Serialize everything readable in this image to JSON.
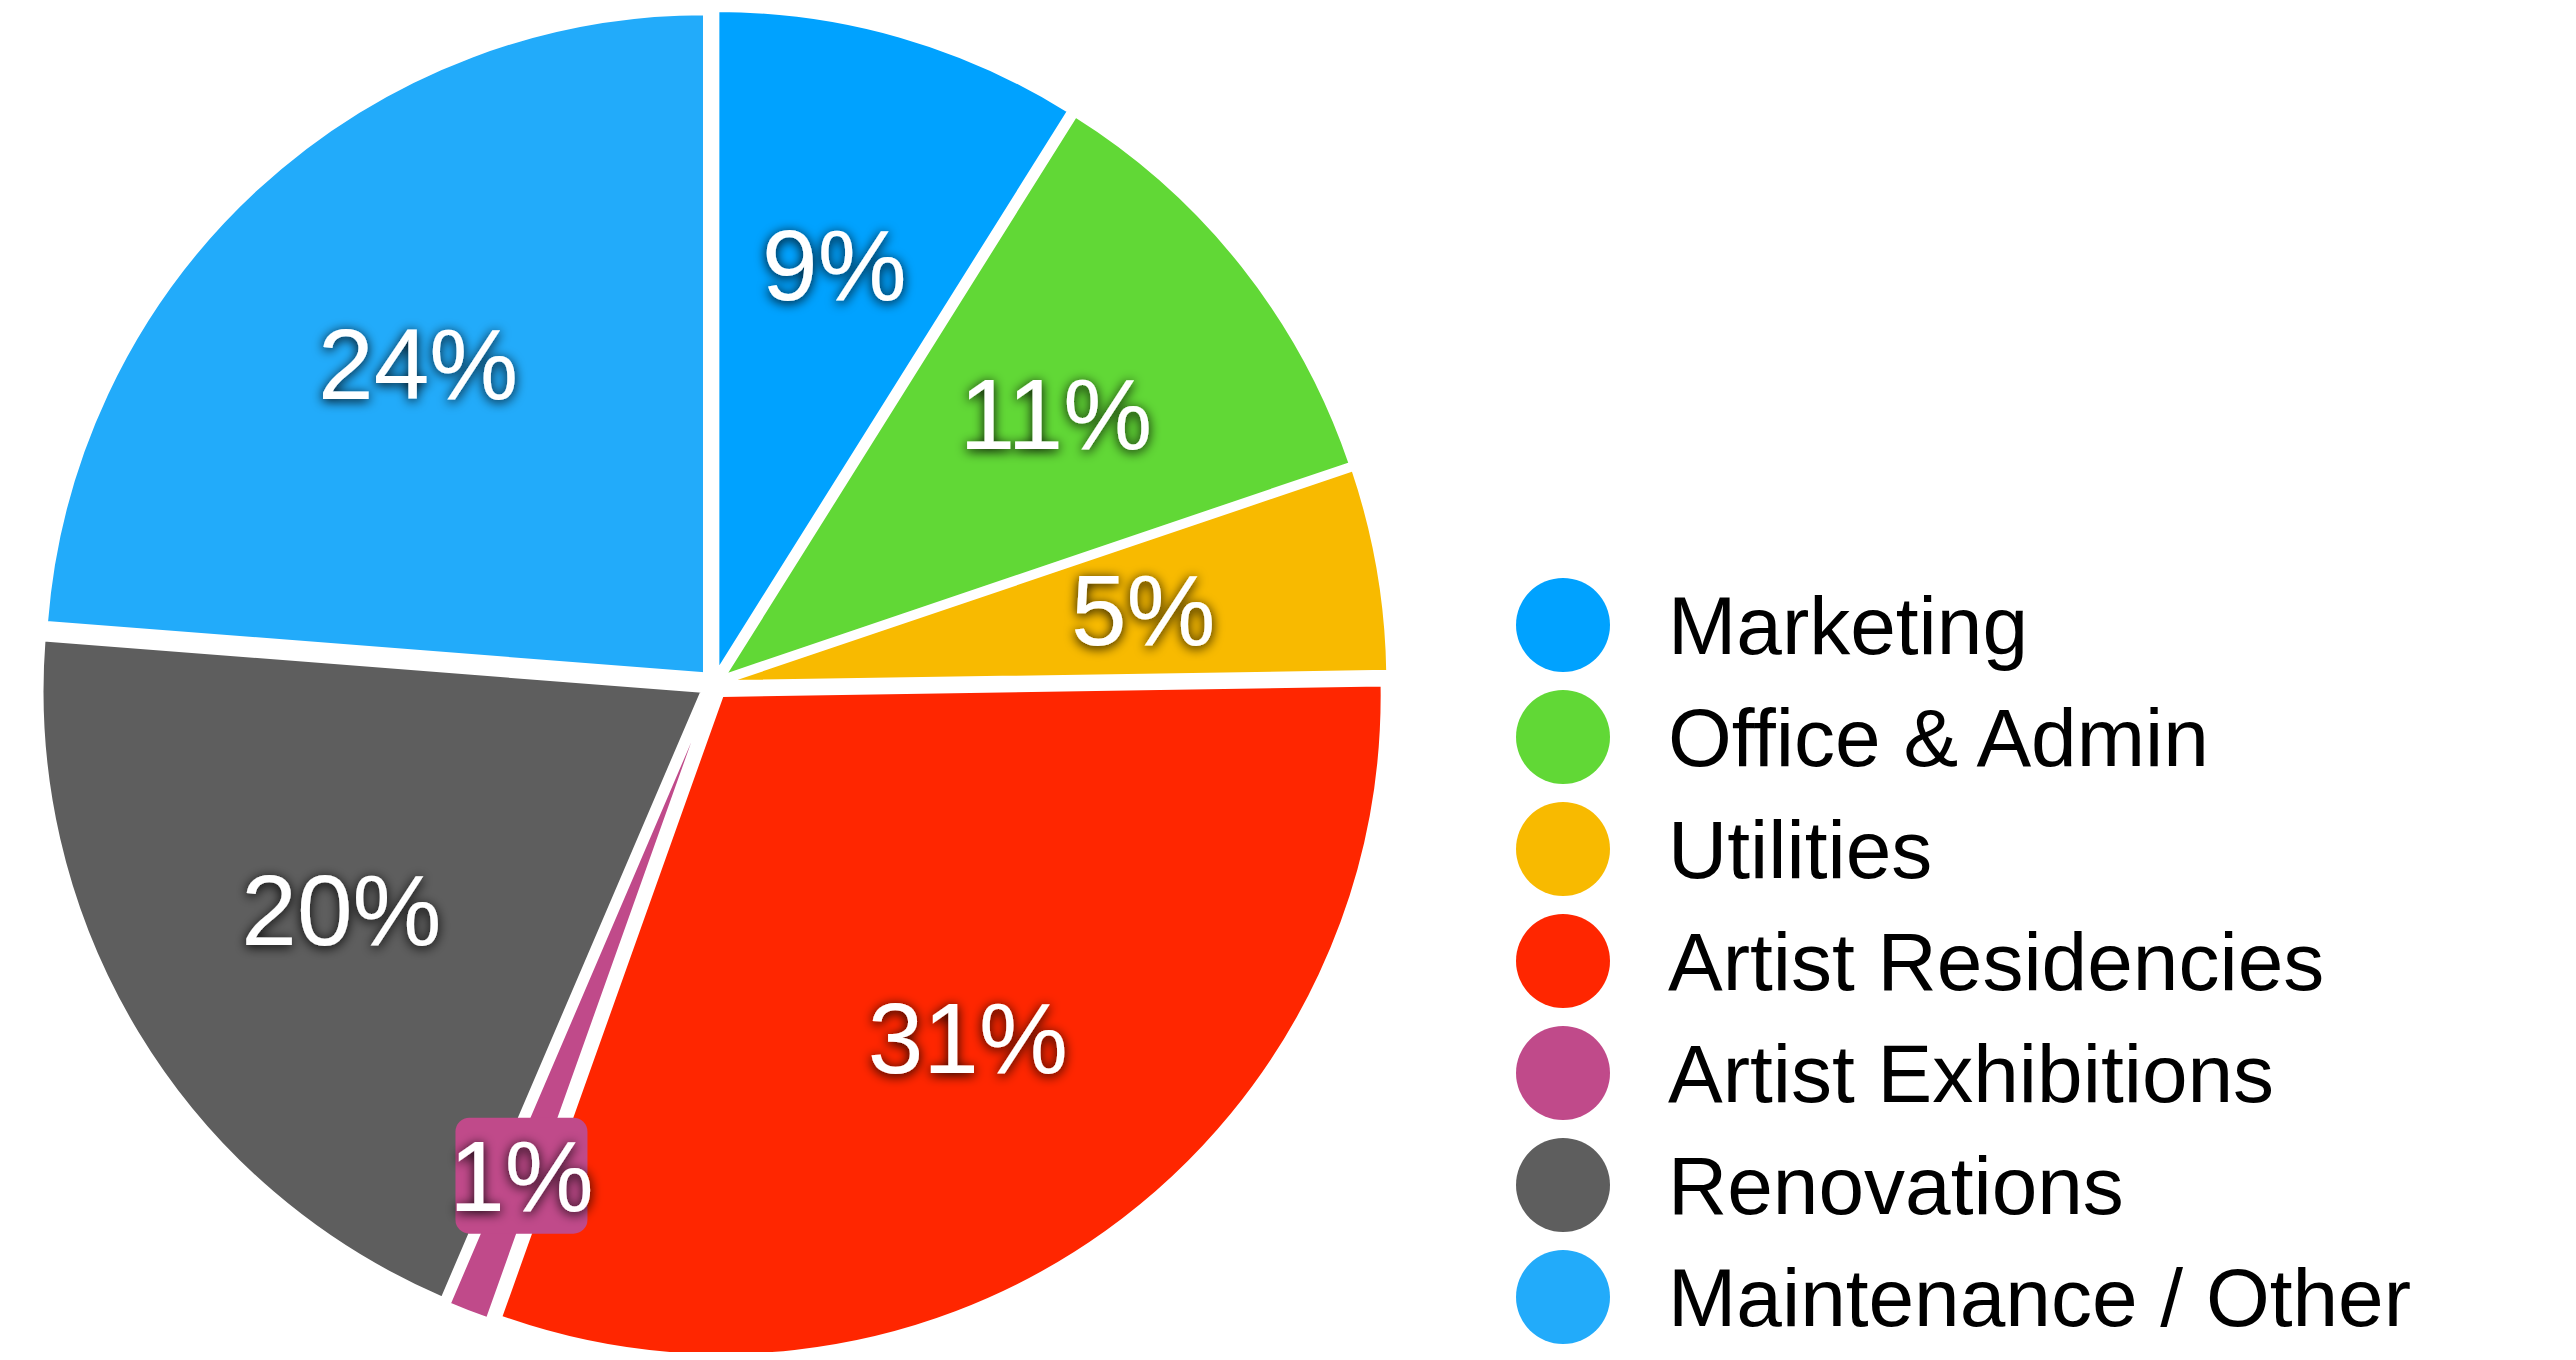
{
  "chart_data": {
    "type": "pie",
    "categories": [
      "Marketing",
      "Office & Admin",
      "Utilities",
      "Artist Residencies",
      "Artist Exhibitions",
      "Renovations",
      "Maintenance / Other"
    ],
    "values": [
      9,
      11,
      5,
      31,
      1,
      20,
      24
    ],
    "value_labels": [
      "9%",
      "11%",
      "5%",
      "31%",
      "1%",
      "20%",
      "24%"
    ],
    "colors": [
      "#00a2ff",
      "#61d836",
      "#f8ba00",
      "#ff2600",
      "#c04a8a",
      "#5e5e5e",
      "#22abfa"
    ],
    "legend": "right"
  }
}
